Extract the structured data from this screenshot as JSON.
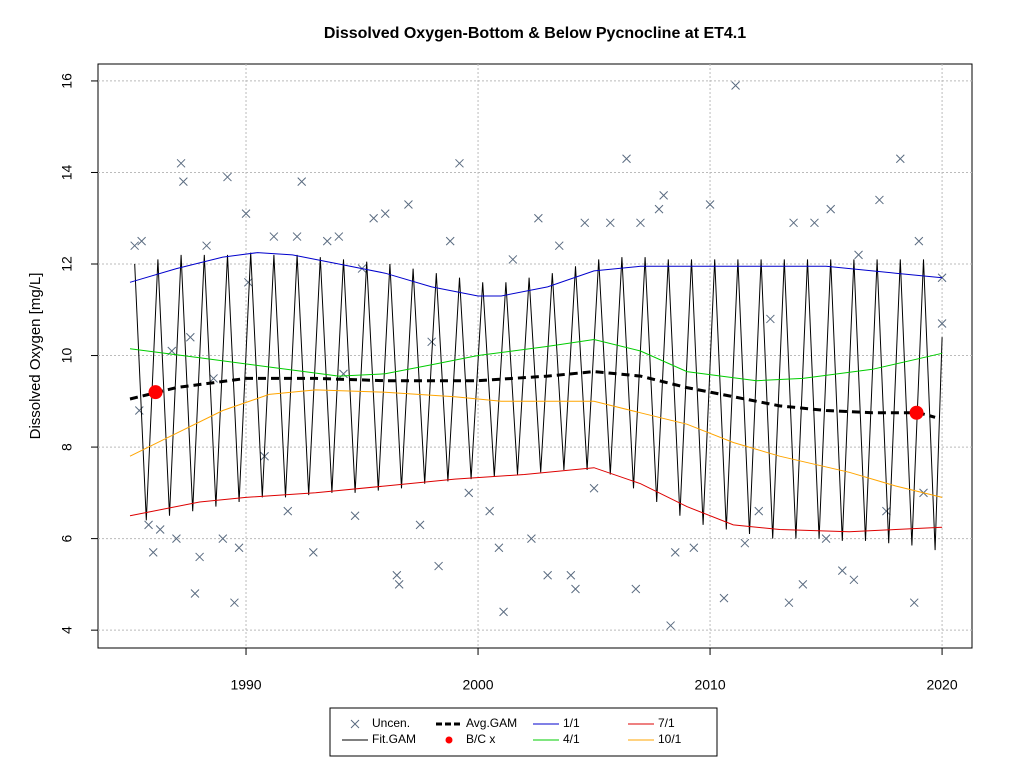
{
  "chart_data": {
    "type": "line",
    "title": "Dissolved Oxygen-Bottom & Below Pycnocline at ET4.1",
    "y_label": "Dissolved Oxygen [mg/L]",
    "xlim": [
      1983.62,
      2021.29
    ],
    "ylim": [
      3.61,
      16.37
    ],
    "xticks": [
      1990,
      2000,
      2010,
      2020
    ],
    "yticks": [
      4,
      6,
      8,
      10,
      12,
      14,
      16
    ],
    "grid": true,
    "legend": "bottom",
    "series": [
      {
        "name": "Uncen.",
        "color": "#5a6b80",
        "kind": "points",
        "x": [
          1985.2,
          1985.5,
          1985.4,
          1985.8,
          1986.0,
          1986.3,
          1986.8,
          1987.0,
          1987.2,
          1987.3,
          1987.6,
          1987.8,
          1988.0,
          1988.3,
          1988.6,
          1989.0,
          1989.2,
          1989.5,
          1989.7,
          1990.0,
          1990.1,
          1990.8,
          1991.2,
          1991.8,
          1992.2,
          1992.4,
          1992.9,
          1993.5,
          1994.0,
          1994.2,
          1994.7,
          1995.0,
          1995.5,
          1996.0,
          1996.5,
          1996.6,
          1997.0,
          1997.5,
          1998.0,
          1998.3,
          1998.8,
          1999.2,
          1999.6,
          2000.5,
          2000.9,
          2001.1,
          2001.5,
          2002.3,
          2002.6,
          2003.0,
          2003.5,
          2004.0,
          2004.2,
          2004.6,
          2005.0,
          2005.7,
          2006.4,
          2006.8,
          2007.0,
          2007.8,
          2008.0,
          2008.3,
          2008.5,
          2009.3,
          2010.0,
          2010.6,
          2011.1,
          2011.5,
          2012.1,
          2012.6,
          2013.4,
          2013.6,
          2014.0,
          2014.5,
          2015.0,
          2015.2,
          2015.7,
          2016.2,
          2016.4,
          2017.3,
          2017.6,
          2018.2,
          2018.8,
          2019.0,
          2019.2,
          2020.0,
          2020.0
        ],
        "values": [
          12.4,
          12.5,
          8.8,
          6.3,
          5.7,
          6.2,
          10.1,
          6.0,
          14.2,
          13.8,
          10.4,
          4.8,
          5.6,
          12.4,
          9.5,
          6.0,
          13.9,
          4.6,
          5.8,
          13.1,
          11.6,
          7.8,
          12.6,
          6.6,
          12.6,
          13.8,
          5.7,
          12.5,
          12.6,
          9.6,
          6.5,
          11.9,
          13.0,
          13.1,
          5.2,
          5.0,
          13.3,
          6.3,
          10.3,
          5.4,
          12.5,
          14.2,
          7.0,
          6.6,
          5.8,
          4.4,
          12.1,
          6.0,
          13.0,
          5.2,
          12.4,
          5.2,
          4.9,
          12.9,
          7.1,
          12.9,
          14.3,
          4.9,
          12.9,
          13.2,
          13.5,
          4.1,
          5.7,
          5.8,
          13.3,
          4.7,
          15.9,
          5.9,
          6.6,
          10.8,
          4.6,
          12.9,
          5.0,
          12.9,
          6.0,
          13.2,
          5.3,
          5.1,
          12.2,
          13.4,
          6.6,
          14.3,
          4.6,
          12.5,
          7.0,
          10.7,
          11.7
        ]
      },
      {
        "name": "Fit.GAM",
        "color": "#000000",
        "kind": "line",
        "x": [
          1985.2,
          1985.7,
          1986.2,
          1986.7,
          1987.2,
          1987.7,
          1988.2,
          1988.7,
          1989.2,
          1989.7,
          1990.2,
          1990.7,
          1991.2,
          1991.7,
          1992.2,
          1992.7,
          1993.2,
          1993.7,
          1994.2,
          1994.7,
          1995.2,
          1995.7,
          1996.2,
          1996.7,
          1997.2,
          1997.7,
          1998.2,
          1998.7,
          1999.2,
          1999.7,
          2000.2,
          2000.7,
          2001.2,
          2001.7,
          2002.2,
          2002.7,
          2003.2,
          2003.7,
          2004.2,
          2004.7,
          2005.2,
          2005.7,
          2006.2,
          2006.7,
          2007.2,
          2007.7,
          2008.2,
          2008.7,
          2009.2,
          2009.7,
          2010.2,
          2010.7,
          2011.2,
          2011.7,
          2012.2,
          2012.7,
          2013.2,
          2013.7,
          2014.2,
          2014.7,
          2015.2,
          2015.7,
          2016.2,
          2016.7,
          2017.2,
          2017.7,
          2018.2,
          2018.7,
          2019.2,
          2019.7,
          2020.0
        ],
        "values": [
          12.0,
          6.4,
          12.1,
          6.5,
          12.2,
          6.6,
          12.2,
          6.7,
          12.2,
          6.8,
          12.25,
          6.9,
          12.2,
          6.9,
          12.2,
          6.95,
          12.15,
          7.0,
          12.1,
          7.0,
          12.05,
          7.05,
          12.0,
          7.1,
          11.9,
          7.2,
          11.8,
          7.25,
          11.7,
          7.3,
          11.6,
          7.35,
          11.6,
          7.4,
          11.7,
          7.45,
          11.8,
          7.5,
          11.95,
          7.5,
          12.1,
          7.4,
          12.15,
          7.1,
          12.15,
          6.8,
          12.1,
          6.5,
          12.1,
          6.3,
          12.1,
          6.2,
          12.1,
          6.1,
          12.1,
          6.0,
          12.1,
          6.0,
          12.1,
          6.0,
          12.1,
          5.95,
          12.1,
          5.95,
          12.1,
          5.9,
          12.1,
          5.85,
          12.1,
          5.75,
          10.4
        ]
      },
      {
        "name": "Avg.GAM",
        "color": "#000000",
        "kind": "dashed",
        "x": [
          1985,
          1987,
          1990,
          1993,
          1996,
          2000,
          2003,
          2005,
          2007,
          2009,
          2011,
          2013,
          2015,
          2017,
          2019,
          2019.7
        ],
        "values": [
          9.05,
          9.3,
          9.5,
          9.5,
          9.45,
          9.45,
          9.55,
          9.65,
          9.55,
          9.3,
          9.1,
          8.9,
          8.8,
          8.75,
          8.75,
          8.65
        ]
      },
      {
        "name": "B/C x",
        "color": "#ff0000",
        "kind": "dots",
        "x": [
          1986.1,
          2018.9
        ],
        "values": [
          9.2,
          8.75
        ]
      },
      {
        "name": "1/1",
        "color": "#0000cc",
        "kind": "line",
        "x": [
          1985,
          1987,
          1989,
          1990.5,
          1992,
          1994,
          1996,
          1998,
          2000,
          2001,
          2003,
          2005,
          2007,
          2010,
          2015,
          2018,
          2020
        ],
        "values": [
          11.6,
          11.9,
          12.15,
          12.25,
          12.2,
          12.0,
          11.8,
          11.5,
          11.3,
          11.3,
          11.5,
          11.85,
          11.95,
          11.95,
          11.95,
          11.8,
          11.7
        ]
      },
      {
        "name": "4/1",
        "color": "#00cc00",
        "kind": "line",
        "x": [
          1985,
          1988,
          1991,
          1994,
          1996,
          1998,
          2000,
          2003,
          2005,
          2007,
          2009,
          2012,
          2014,
          2017,
          2020
        ],
        "values": [
          10.15,
          9.95,
          9.75,
          9.55,
          9.6,
          9.8,
          10.0,
          10.2,
          10.35,
          10.1,
          9.65,
          9.45,
          9.5,
          9.7,
          10.05
        ]
      },
      {
        "name": "7/1",
        "color": "#dd0000",
        "kind": "line",
        "x": [
          1985,
          1988,
          1990,
          1993,
          1996,
          1999,
          2002,
          2005,
          2007,
          2009,
          2011,
          2013,
          2016,
          2018,
          2020
        ],
        "values": [
          6.5,
          6.8,
          6.9,
          7.0,
          7.15,
          7.3,
          7.4,
          7.55,
          7.2,
          6.7,
          6.3,
          6.2,
          6.15,
          6.2,
          6.25
        ]
      },
      {
        "name": "10/1",
        "color": "#ffa500",
        "kind": "line",
        "x": [
          1985,
          1987,
          1989,
          1991,
          1993,
          1996,
          1999,
          2001,
          2003,
          2005,
          2007,
          2009,
          2011,
          2013,
          2016,
          2018,
          2020
        ],
        "values": [
          7.8,
          8.3,
          8.8,
          9.15,
          9.25,
          9.2,
          9.1,
          9.0,
          9.0,
          9.0,
          8.75,
          8.5,
          8.1,
          7.8,
          7.45,
          7.15,
          6.9
        ]
      }
    ]
  }
}
